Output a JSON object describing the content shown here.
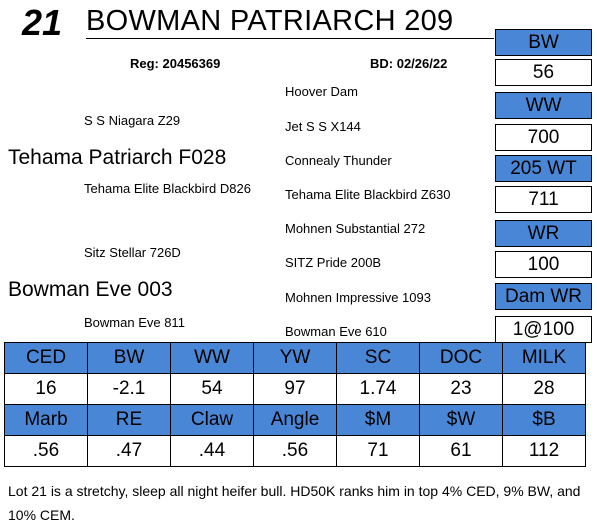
{
  "lot_number": "21",
  "title": "BOWMAN PATRIARCH 209",
  "registration": "Reg: 20456369",
  "birth_date": "BD: 02/26/22",
  "pedigree": {
    "sire": "Tehama Patriarch F028",
    "sire_sire": "S S Niagara Z29",
    "sire_dam": "Tehama Elite Blackbird D826",
    "dam": "Bowman Eve 003",
    "dam_sire": "Sitz Stellar 726D",
    "dam_dam": "Bowman Eve 811",
    "ss_sire": "Hoover Dam",
    "ss_dam": "Jet S S X144",
    "sd_sire": "Connealy Thunder",
    "sd_dam": "Tehama Elite Blackbird Z630",
    "ds_sire": "Mohnen Substantial 272",
    "ds_dam": "SITZ Pride 200B",
    "dd_sire": "Mohnen Impressive 1093",
    "dd_dam": "Bowman Eve 610"
  },
  "performance": [
    {
      "label": "BW",
      "value": "56"
    },
    {
      "label": "WW",
      "value": "700"
    },
    {
      "label": "205 WT",
      "value": "711"
    },
    {
      "label": "WR",
      "value": "100"
    },
    {
      "label": "Dam WR",
      "value": "1@100"
    }
  ],
  "epd_row1": {
    "headers": [
      "CED",
      "BW",
      "WW",
      "YW",
      "SC",
      "DOC",
      "MILK"
    ],
    "values": [
      "16",
      "-2.1",
      "54",
      "97",
      "1.74",
      "23",
      "28"
    ]
  },
  "epd_row2": {
    "headers": [
      "Marb",
      "RE",
      "Claw",
      "Angle",
      "$M",
      "$W",
      "$B"
    ],
    "values": [
      ".56",
      ".47",
      ".44",
      ".56",
      "71",
      "61",
      "112"
    ]
  },
  "comment": "Lot 21 is a stretchy, sleep all night heifer bull.  HD50K ranks him in top 4% CED, 9% BW, and 10% CEM.",
  "colors": {
    "header_blue": "#4a86d6"
  }
}
